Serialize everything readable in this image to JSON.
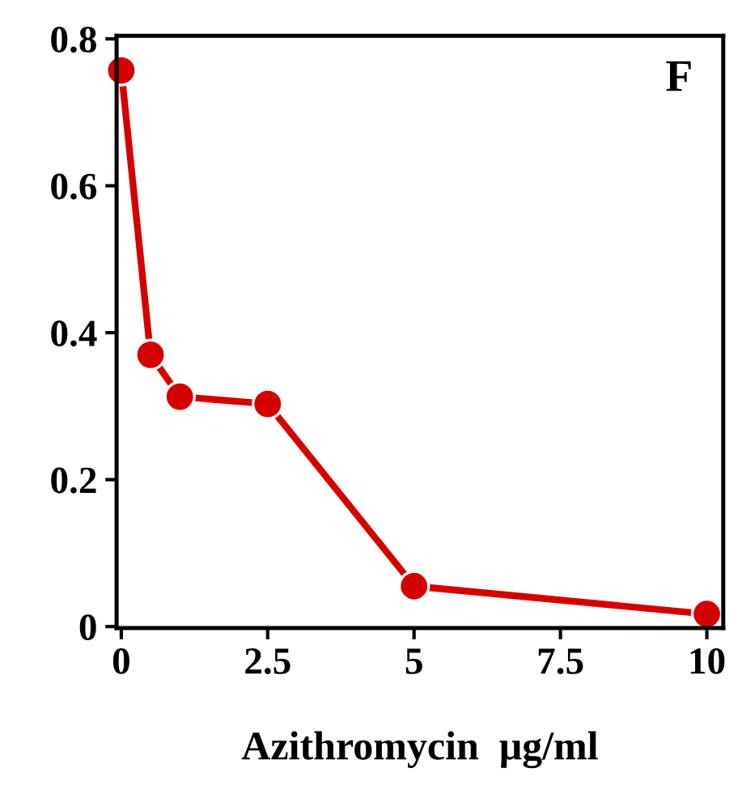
{
  "chart_data": {
    "type": "line",
    "xlabel": "Azithromycin  μg/ml",
    "x": [
      0,
      0.5,
      1,
      2.5,
      5,
      10
    ],
    "series": [
      {
        "color": "#d40000",
        "values": [
          0.757,
          0.37,
          0.313,
          0.303,
          0.055,
          0.017
        ]
      }
    ],
    "xlim": [
      -0.08,
      10.28
    ],
    "ylim": [
      -0.002,
      0.804
    ],
    "xticks": [
      0,
      2.5,
      5,
      7.5,
      10
    ],
    "yticks": [
      0,
      0.2,
      0.4,
      0.6,
      0.8
    ],
    "marker": "circle",
    "line_style": "solid",
    "grid": false,
    "legend": false,
    "annotations": [
      "F"
    ]
  }
}
